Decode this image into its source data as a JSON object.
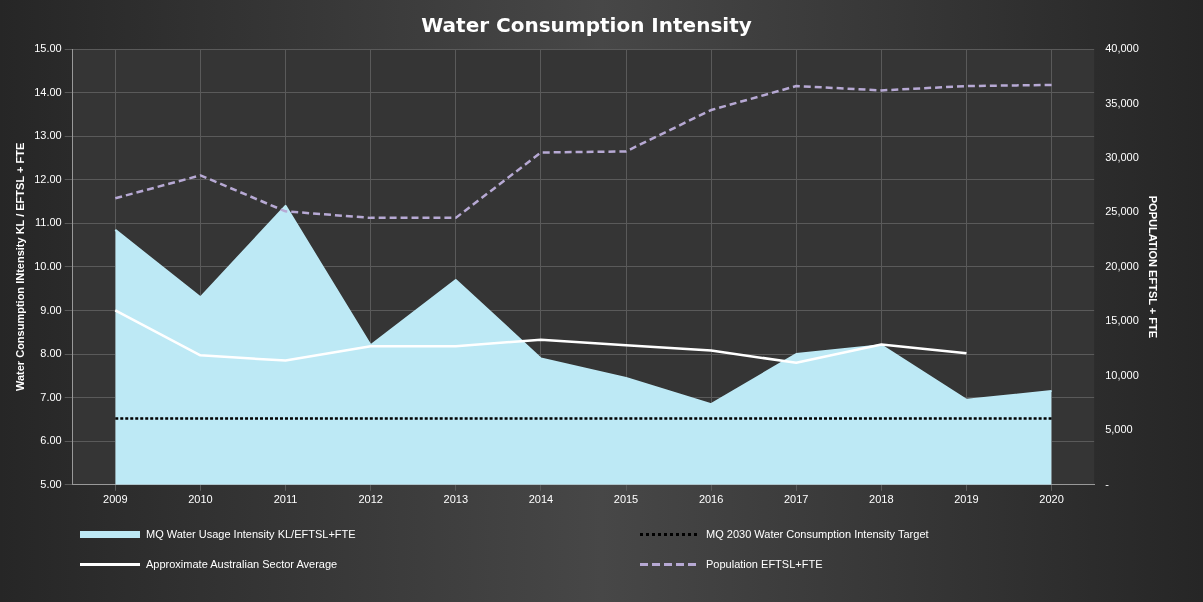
{
  "chart_data": {
    "type": "line",
    "title": "Water Consumption Intensity",
    "ylabel": "Water Consumption INtensity KL / EFTSL + FTE",
    "y2label": "POPULATION EFTSL + FTE",
    "categories": [
      "2009",
      "2010",
      "2011",
      "2012",
      "2013",
      "2014",
      "2015",
      "2016",
      "2017",
      "2018",
      "2019",
      "2020"
    ],
    "ylim": [
      5,
      15
    ],
    "yticks": [
      {
        "value": 5,
        "label": "5.00"
      },
      {
        "value": 6,
        "label": "6.00"
      },
      {
        "value": 7,
        "label": "7.00"
      },
      {
        "value": 8,
        "label": "8.00"
      },
      {
        "value": 9,
        "label": "9.00"
      },
      {
        "value": 10,
        "label": "10.00"
      },
      {
        "value": 11,
        "label": "11.00"
      },
      {
        "value": 12,
        "label": "12.00"
      },
      {
        "value": 13,
        "label": "13.00"
      },
      {
        "value": 14,
        "label": "14.00"
      },
      {
        "value": 15,
        "label": "15.00"
      }
    ],
    "y2lim": [
      0,
      40000
    ],
    "y2ticks": [
      {
        "value": 0,
        "label": "-"
      },
      {
        "value": 5000,
        "label": "5,000"
      },
      {
        "value": 10000,
        "label": "10,000"
      },
      {
        "value": 15000,
        "label": "15,000"
      },
      {
        "value": 20000,
        "label": "20,000"
      },
      {
        "value": 25000,
        "label": "25,000"
      },
      {
        "value": 30000,
        "label": "30,000"
      },
      {
        "value": 35000,
        "label": "35,000"
      },
      {
        "value": 40000,
        "label": "40,000"
      }
    ],
    "series": [
      {
        "name": "MQ Water Usage Intensity KL/EFTSL+FTE",
        "type": "area",
        "color": "#bde9f5",
        "values": [
          10.85,
          9.3,
          11.4,
          8.2,
          9.7,
          7.9,
          7.45,
          6.85,
          8.0,
          8.2,
          6.95,
          7.15
        ]
      },
      {
        "name": "MQ 2030 Water Consumption Intensity Target",
        "type": "line",
        "color": "#000000",
        "line_style": "dotted",
        "values": [
          6.52,
          6.52,
          6.52,
          6.52,
          6.52,
          6.52,
          6.52,
          6.52,
          6.52,
          6.52,
          6.52,
          6.52
        ]
      },
      {
        "name": "Approximate Australian Sector Average",
        "type": "line",
        "color": "#ffffff",
        "line_style": "solid",
        "values": [
          9.0,
          7.97,
          7.85,
          8.18,
          8.18,
          8.33,
          8.2,
          8.08,
          7.8,
          8.22,
          8.02,
          null
        ]
      },
      {
        "name": "Population EFTSL+FTE",
        "type": "line",
        "color": "#b7a9d4",
        "line_style": "dashed",
        "axis": "y2",
        "values": [
          26300,
          28400,
          25100,
          24500,
          24500,
          30500,
          30600,
          34400,
          36600,
          36200,
          36600,
          36700
        ]
      }
    ],
    "grid": true,
    "legend": "bottom",
    "marker": "none"
  }
}
